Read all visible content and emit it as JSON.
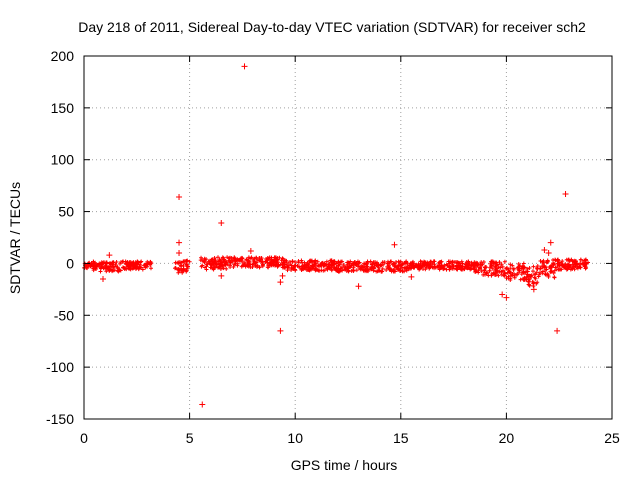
{
  "chart_data": {
    "type": "scatter",
    "title": "Day 218 of 2011, Sidereal Day-to-day VTEC variation (SDTVAR) for receiver sch2",
    "xlabel": "GPS time / hours",
    "ylabel": "SDTVAR / TECUs",
    "xlim": [
      0,
      25
    ],
    "ylim": [
      -150,
      200
    ],
    "xticks": [
      0,
      5,
      10,
      15,
      20,
      25
    ],
    "yticks": [
      -150,
      -100,
      -50,
      0,
      50,
      100,
      150,
      200
    ],
    "grid": true,
    "marker": "+",
    "color": "#ff0000",
    "band_segments": [
      {
        "x_start": 0.0,
        "x_end": 0.4,
        "center": -2,
        "halfwidth": 3
      },
      {
        "x_start": 0.4,
        "x_end": 1.9,
        "center": -3,
        "halfwidth": 5
      },
      {
        "x_start": 1.9,
        "x_end": 3.2,
        "center": -2,
        "halfwidth": 4
      },
      {
        "x_start": 4.3,
        "x_end": 5.0,
        "center": -3,
        "halfwidth": 6
      },
      {
        "x_start": 5.5,
        "x_end": 7.0,
        "center": 0,
        "halfwidth": 6
      },
      {
        "x_start": 7.0,
        "x_end": 9.5,
        "center": 1,
        "halfwidth": 5
      },
      {
        "x_start": 9.5,
        "x_end": 12.0,
        "center": -2,
        "halfwidth": 5
      },
      {
        "x_start": 12.0,
        "x_end": 15.5,
        "center": -3,
        "halfwidth": 5
      },
      {
        "x_start": 15.5,
        "x_end": 18.5,
        "center": -2,
        "halfwidth": 4
      },
      {
        "x_start": 18.5,
        "x_end": 20.0,
        "center": -5,
        "halfwidth": 7
      },
      {
        "x_start": 20.0,
        "x_end": 21.0,
        "center": -8,
        "halfwidth": 8
      },
      {
        "x_start": 21.0,
        "x_end": 21.6,
        "center": -12,
        "halfwidth": 10
      },
      {
        "x_start": 21.6,
        "x_end": 22.3,
        "center": -5,
        "halfwidth": 9
      },
      {
        "x_start": 22.3,
        "x_end": 23.9,
        "center": -1,
        "halfwidth": 5
      }
    ],
    "outliers": [
      {
        "x": 7.6,
        "y": 190
      },
      {
        "x": 22.8,
        "y": 67
      },
      {
        "x": 4.5,
        "y": 64
      },
      {
        "x": 6.5,
        "y": 39
      },
      {
        "x": 4.5,
        "y": 20
      },
      {
        "x": 14.7,
        "y": 18
      },
      {
        "x": 22.1,
        "y": 20
      },
      {
        "x": 21.8,
        "y": 13
      },
      {
        "x": 7.9,
        "y": 12
      },
      {
        "x": 22.0,
        "y": 10
      },
      {
        "x": 1.2,
        "y": 8
      },
      {
        "x": 4.5,
        "y": 10
      },
      {
        "x": 0.9,
        "y": -15
      },
      {
        "x": 9.3,
        "y": -18
      },
      {
        "x": 9.4,
        "y": -12
      },
      {
        "x": 6.5,
        "y": -12
      },
      {
        "x": 13.0,
        "y": -22
      },
      {
        "x": 15.5,
        "y": -13
      },
      {
        "x": 19.8,
        "y": -30
      },
      {
        "x": 20.0,
        "y": -33
      },
      {
        "x": 21.3,
        "y": -25
      },
      {
        "x": 9.3,
        "y": -65
      },
      {
        "x": 22.4,
        "y": -65
      },
      {
        "x": 5.6,
        "y": -136
      }
    ]
  }
}
